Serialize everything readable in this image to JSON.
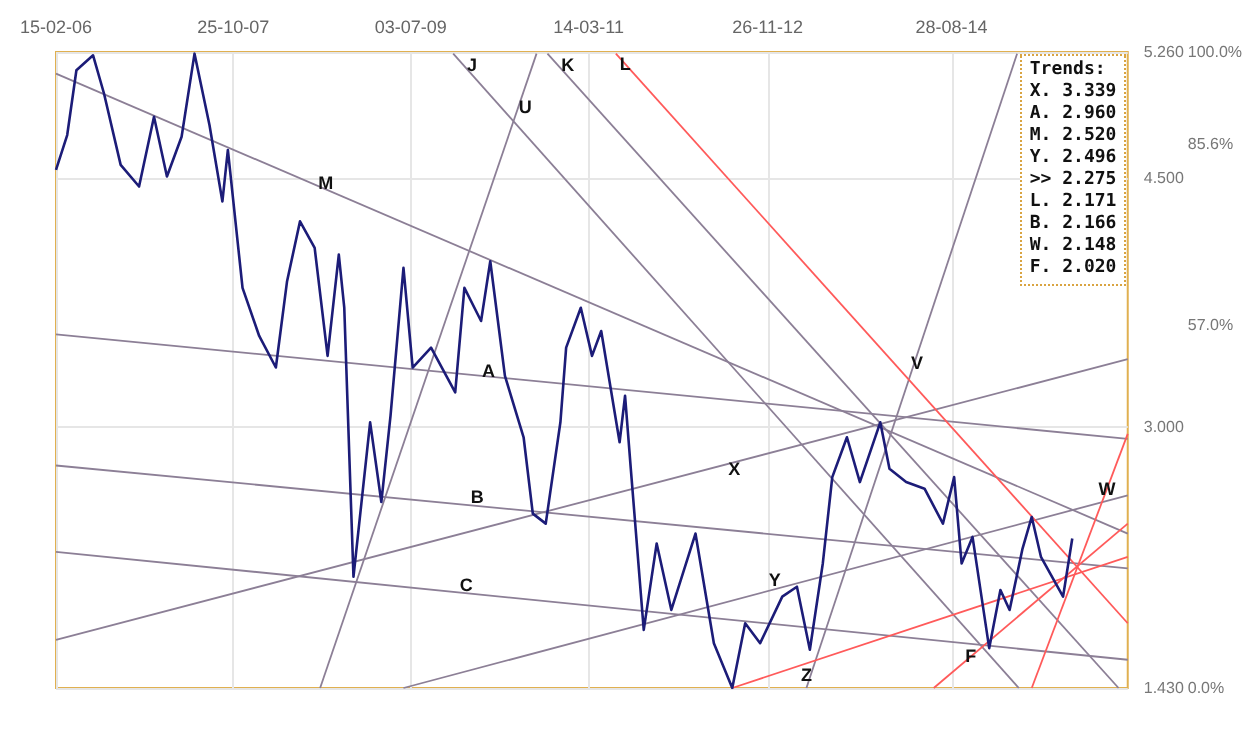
{
  "chart_data": {
    "type": "line",
    "marker": "none",
    "grid": true,
    "xlim": [
      "2006-02-15",
      "2016-05-02"
    ],
    "xticks": [
      {
        "value": "2006-02-15",
        "label": "15-02-06"
      },
      {
        "value": "2007-10-25",
        "label": "25-10-07"
      },
      {
        "value": "2009-07-03",
        "label": "03-07-09"
      },
      {
        "value": "2011-03-14",
        "label": "14-03-11"
      },
      {
        "value": "2012-11-26",
        "label": "26-11-12"
      },
      {
        "value": "2014-08-28",
        "label": "28-08-14"
      }
    ],
    "ylim": [
      1.43,
      5.26
    ],
    "yticks": [
      {
        "value": 1.43,
        "label": "1.430"
      },
      {
        "value": 3.0,
        "label": "3.000"
      },
      {
        "value": 4.5,
        "label": "4.500"
      },
      {
        "value": 5.26,
        "label": "5.260"
      }
    ],
    "y2lim": [
      0,
      100
    ],
    "y2ticks": [
      {
        "value": 0,
        "label": "0.0%"
      },
      {
        "value": 57.0,
        "label": "57.0%"
      },
      {
        "value": 85.6,
        "label": "85.6%"
      },
      {
        "value": 100,
        "label": "100.0%"
      }
    ],
    "series": [
      {
        "color": "#1c1c78",
        "x": [
          "2006-02-15",
          "2006-03-26",
          "2006-04-27",
          "2006-06-24",
          "2006-08-01",
          "2006-09-28",
          "2006-12-01",
          "2007-01-22",
          "2007-03-08",
          "2007-04-28",
          "2007-06-12",
          "2007-08-03",
          "2007-09-17",
          "2007-10-06",
          "2007-11-26",
          "2008-01-23",
          "2008-03-21",
          "2008-04-29",
          "2008-06-13",
          "2008-08-03",
          "2008-09-17",
          "2008-10-26",
          "2008-11-14",
          "2008-12-16",
          "2009-02-12",
          "2009-03-23",
          "2009-04-24",
          "2009-06-08",
          "2009-07-10",
          "2009-09-12",
          "2009-12-05",
          "2010-01-06",
          "2010-03-05",
          "2010-04-06",
          "2010-05-27",
          "2010-07-31",
          "2010-09-01",
          "2010-10-16",
          "2010-12-06",
          "2010-12-26",
          "2011-02-15",
          "2011-03-26",
          "2011-04-27",
          "2011-06-30",
          "2011-07-19",
          "2011-08-08",
          "2011-09-22",
          "2011-11-06",
          "2011-12-27",
          "2012-03-20",
          "2012-05-23",
          "2012-07-26",
          "2012-09-09",
          "2012-10-31",
          "2013-01-16",
          "2013-03-08",
          "2013-04-22",
          "2013-06-06",
          "2013-07-09",
          "2013-08-29",
          "2013-10-13",
          "2013-12-23",
          "2014-01-24",
          "2014-03-23",
          "2014-05-26",
          "2014-07-29",
          "2014-09-06",
          "2014-10-02",
          "2014-11-09",
          "2015-01-06",
          "2015-02-14",
          "2015-03-18",
          "2015-05-02",
          "2015-06-03",
          "2015-07-05",
          "2015-09-20",
          "2015-10-22"
        ],
        "values": [
          4.55,
          4.76,
          5.15,
          5.24,
          5.01,
          4.58,
          4.45,
          4.87,
          4.51,
          4.75,
          5.25,
          4.82,
          4.36,
          4.67,
          3.84,
          3.55,
          3.36,
          3.88,
          4.24,
          4.08,
          3.43,
          4.04,
          3.72,
          2.1,
          3.03,
          2.55,
          3.07,
          3.96,
          3.36,
          3.48,
          3.21,
          3.84,
          3.64,
          4.0,
          3.31,
          2.94,
          2.48,
          2.42,
          3.03,
          3.48,
          3.72,
          3.43,
          3.58,
          2.91,
          3.19,
          2.75,
          1.78,
          2.3,
          1.9,
          2.36,
          1.7,
          1.43,
          1.82,
          1.7,
          1.98,
          2.04,
          1.66,
          2.18,
          2.7,
          2.94,
          2.67,
          3.03,
          2.75,
          2.67,
          2.63,
          2.42,
          2.7,
          2.18,
          2.34,
          1.67,
          2.02,
          1.9,
          2.27,
          2.46,
          2.22,
          1.98,
          2.33
        ]
      },
      {
        "color": "#8c7f96",
        "x": [
          "2006-02-15",
          "2016-05-02"
        ],
        "values": [
          5.13,
          2.36
        ]
      },
      {
        "color": "#8c7f96",
        "x": [
          "2006-02-15",
          "2016-05-02"
        ],
        "values": [
          3.56,
          2.93
        ]
      },
      {
        "color": "#8c7f96",
        "x": [
          "2006-02-15",
          "2016-05-02"
        ],
        "values": [
          2.77,
          2.15
        ]
      },
      {
        "color": "#8c7f96",
        "x": [
          "2006-02-15",
          "2016-05-02"
        ],
        "values": [
          2.25,
          1.6
        ]
      },
      {
        "color": "#8c7f96",
        "x": [
          "2006-02-15",
          "2016-05-02"
        ],
        "values": [
          1.72,
          3.41
        ]
      },
      {
        "color": "#8c7f96",
        "x": [
          "2009-06-08",
          "2016-05-02"
        ],
        "values": [
          1.43,
          2.59
        ]
      },
      {
        "color": "#8c7f96",
        "x": [
          "2008-08-22",
          "2010-09-14"
        ],
        "values": [
          1.43,
          5.25
        ]
      },
      {
        "color": "#8c7f96",
        "x": [
          "2009-11-28",
          "2015-04-19"
        ],
        "values": [
          5.25,
          1.43
        ]
      },
      {
        "color": "#8c7f96",
        "x": [
          "2010-10-22",
          "2016-03-31"
        ],
        "values": [
          5.25,
          1.43
        ]
      },
      {
        "color": "#8c7f96",
        "x": [
          "2013-04-10",
          "2015-04-13"
        ],
        "values": [
          1.43,
          5.25
        ]
      },
      {
        "color": "#ff5a5a",
        "x": [
          "2011-06-17",
          "2016-05-02"
        ],
        "values": [
          5.25,
          1.82
        ]
      },
      {
        "color": "#ff5a5a",
        "x": [
          "2012-07-26",
          "2016-05-02"
        ],
        "values": [
          1.43,
          2.22
        ]
      },
      {
        "color": "#ff5a5a",
        "x": [
          "2014-06-27",
          "2016-05-02"
        ],
        "values": [
          1.43,
          2.42
        ]
      },
      {
        "color": "#ff5a5a",
        "x": [
          "2015-06-03",
          "2016-05-02"
        ],
        "values": [
          1.43,
          2.96
        ]
      }
    ],
    "annotations": [
      "Trends:",
      "X. 3.339",
      "A. 2.960",
      "M. 2.520",
      "Y. 2.496",
      ">> 2.275",
      "L. 2.171",
      "B. 2.166",
      "W. 2.148",
      "F. 2.020",
      {
        "text": "M",
        "x": "2008-09-11",
        "y": 4.47
      },
      {
        "text": "J",
        "x": "2010-02-01",
        "y": 5.18
      },
      {
        "text": "U",
        "x": "2010-08-06",
        "y": 4.93
      },
      {
        "text": "K",
        "x": "2011-01-01",
        "y": 5.18
      },
      {
        "text": "L",
        "x": "2011-07-20",
        "y": 5.19
      },
      {
        "text": "A",
        "x": "2010-03-31",
        "y": 3.34
      },
      {
        "text": "B",
        "x": "2010-02-20",
        "y": 2.58
      },
      {
        "text": "C",
        "x": "2010-01-12",
        "y": 2.05
      },
      {
        "text": "X",
        "x": "2012-08-02",
        "y": 2.75
      },
      {
        "text": "Y",
        "x": "2012-12-21",
        "y": 2.08
      },
      {
        "text": "Z",
        "x": "2013-04-10",
        "y": 1.51
      },
      {
        "text": "V",
        "x": "2014-04-30",
        "y": 3.39
      },
      {
        "text": "F",
        "x": "2014-11-03",
        "y": 1.62
      },
      {
        "text": "W",
        "x": "2016-02-20",
        "y": 2.63
      }
    ]
  }
}
